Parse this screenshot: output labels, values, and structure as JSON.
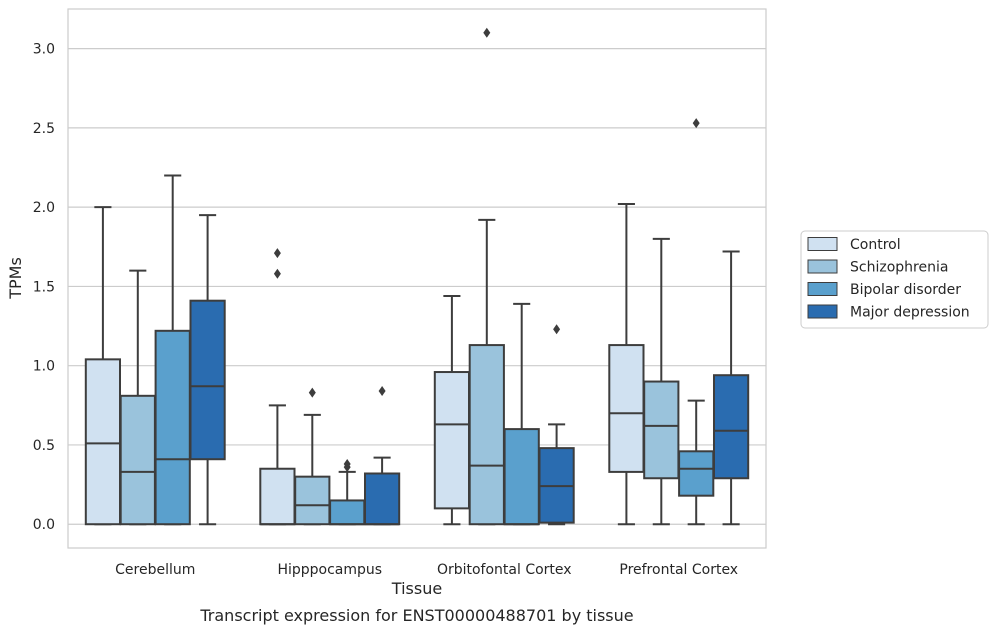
{
  "caption": "Transcript expression for ENST00000488701 by tissue",
  "chart_data": {
    "type": "box",
    "xlabel": "Tissue",
    "ylabel": "TPMs",
    "ylim": [
      -0.15,
      3.25
    ],
    "yticks": [
      "0.0",
      "0.5",
      "1.0",
      "1.5",
      "2.0",
      "2.5",
      "3.0"
    ],
    "grid": true,
    "legend_position": "right",
    "categories": [
      "Cerebellum",
      "Hipppocampus",
      "Orbitofontal Cortex",
      "Prefrontal Cortex"
    ],
    "series": [
      {
        "name": "Control",
        "color": "#d0e1f1",
        "boxes": [
          {
            "whislo": 0.0,
            "q1": 0.0,
            "med": 0.51,
            "q3": 1.04,
            "whishi": 2.0,
            "fliers": []
          },
          {
            "whislo": 0.0,
            "q1": 0.0,
            "med": 0.0,
            "q3": 0.35,
            "whishi": 0.75,
            "fliers": [
              1.58,
              1.71
            ]
          },
          {
            "whislo": 0.0,
            "q1": 0.1,
            "med": 0.63,
            "q3": 0.96,
            "whishi": 1.44,
            "fliers": []
          },
          {
            "whislo": 0.0,
            "q1": 0.33,
            "med": 0.7,
            "q3": 1.13,
            "whishi": 2.02,
            "fliers": []
          }
        ]
      },
      {
        "name": "Schizophrenia",
        "color": "#9ac3dc",
        "boxes": [
          {
            "whislo": 0.0,
            "q1": 0.0,
            "med": 0.33,
            "q3": 0.81,
            "whishi": 1.6,
            "fliers": []
          },
          {
            "whislo": 0.0,
            "q1": 0.0,
            "med": 0.12,
            "q3": 0.3,
            "whishi": 0.69,
            "fliers": [
              0.83
            ]
          },
          {
            "whislo": 0.0,
            "q1": 0.0,
            "med": 0.37,
            "q3": 1.13,
            "whishi": 1.92,
            "fliers": [
              3.1
            ]
          },
          {
            "whislo": 0.0,
            "q1": 0.29,
            "med": 0.62,
            "q3": 0.9,
            "whishi": 1.8,
            "fliers": []
          }
        ]
      },
      {
        "name": "Bipolar disorder",
        "color": "#5aa0cd",
        "boxes": [
          {
            "whislo": 0.0,
            "q1": 0.0,
            "med": 0.41,
            "q3": 1.22,
            "whishi": 2.2,
            "fliers": []
          },
          {
            "whislo": 0.0,
            "q1": 0.0,
            "med": 0.0,
            "q3": 0.15,
            "whishi": 0.33,
            "fliers": [
              0.36,
              0.38
            ]
          },
          {
            "whislo": 0.0,
            "q1": 0.0,
            "med": 0.0,
            "q3": 0.6,
            "whishi": 1.39,
            "fliers": []
          },
          {
            "whislo": 0.0,
            "q1": 0.18,
            "med": 0.35,
            "q3": 0.46,
            "whishi": 0.78,
            "fliers": [
              2.53
            ]
          }
        ]
      },
      {
        "name": "Major depression",
        "color": "#2a6cb0",
        "boxes": [
          {
            "whislo": 0.0,
            "q1": 0.41,
            "med": 0.87,
            "q3": 1.41,
            "whishi": 1.95,
            "fliers": []
          },
          {
            "whislo": 0.0,
            "q1": 0.0,
            "med": 0.0,
            "q3": 0.32,
            "whishi": 0.42,
            "fliers": [
              0.84
            ]
          },
          {
            "whislo": 0.0,
            "q1": 0.01,
            "med": 0.24,
            "q3": 0.48,
            "whishi": 0.63,
            "fliers": [
              1.23
            ]
          },
          {
            "whislo": 0.0,
            "q1": 0.29,
            "med": 0.59,
            "q3": 0.94,
            "whishi": 1.72,
            "fliers": []
          }
        ]
      }
    ]
  }
}
